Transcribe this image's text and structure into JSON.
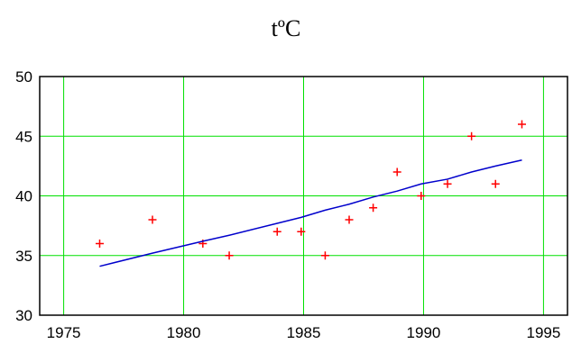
{
  "colors": {
    "background": "#ffffff",
    "plot_border": "#000000",
    "grid": "#00e000",
    "scatter": "#ff0000",
    "trend": "#0000cc"
  },
  "chart_data": {
    "type": "scatter",
    "title": "tºC",
    "xlabel": "",
    "ylabel": "",
    "xlim": [
      1974,
      1996
    ],
    "ylim": [
      30,
      50
    ],
    "x_ticks": [
      1975,
      1980,
      1985,
      1990,
      1995
    ],
    "y_ticks": [
      30,
      35,
      40,
      45,
      50
    ],
    "grid": true,
    "legend": "none",
    "series": [
      {
        "type": "scatter",
        "marker": "plus",
        "color": "#ff0000",
        "x": [
          1976.5,
          1978.7,
          1980.8,
          1981.9,
          1983.9,
          1984.9,
          1985.9,
          1986.9,
          1987.9,
          1988.9,
          1989.9,
          1991.0,
          1992.0,
          1993.0,
          1994.1
        ],
        "y": [
          36,
          38,
          36,
          35,
          37,
          37,
          35,
          38,
          39,
          42,
          40,
          41,
          45,
          41,
          46
        ]
      },
      {
        "type": "line",
        "color": "#0000cc",
        "x": [
          1976.5,
          1978.7,
          1980.8,
          1981.9,
          1983.9,
          1984.9,
          1985.9,
          1986.9,
          1987.9,
          1988.9,
          1989.9,
          1991.0,
          1992.0,
          1993.0,
          1994.1
        ],
        "y": [
          34.1,
          35.2,
          36.2,
          36.7,
          37.7,
          38.2,
          38.8,
          39.3,
          39.9,
          40.4,
          41.0,
          41.4,
          42.0,
          42.5,
          43.0
        ]
      }
    ]
  }
}
